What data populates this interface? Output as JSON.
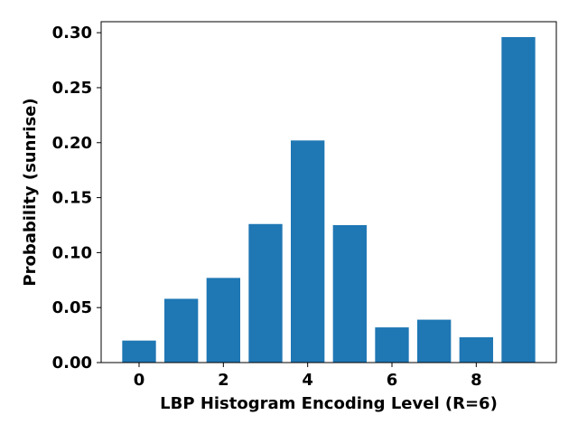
{
  "chart_data": {
    "type": "bar",
    "categories": [
      0,
      1,
      2,
      3,
      4,
      5,
      6,
      7,
      8,
      9
    ],
    "values": [
      0.02,
      0.058,
      0.077,
      0.126,
      0.202,
      0.125,
      0.032,
      0.039,
      0.023,
      0.296
    ],
    "xlabel": "LBP Histogram Encoding Level (R=6)",
    "ylabel": "Probability (sunrise)",
    "xlim": [
      -0.9,
      9.9
    ],
    "ylim": [
      0,
      0.31
    ],
    "xticks": [
      0,
      2,
      4,
      6,
      8
    ],
    "xtick_labels": [
      "0",
      "2",
      "4",
      "6",
      "8"
    ],
    "yticks": [
      0,
      0.05,
      0.1,
      0.15,
      0.2,
      0.25,
      0.3
    ],
    "ytick_labels": [
      "0.00",
      "0.05",
      "0.10",
      "0.15",
      "0.20",
      "0.25",
      "0.30"
    ],
    "bar_color": "#1f77b4",
    "grid": false,
    "legend": "none"
  }
}
